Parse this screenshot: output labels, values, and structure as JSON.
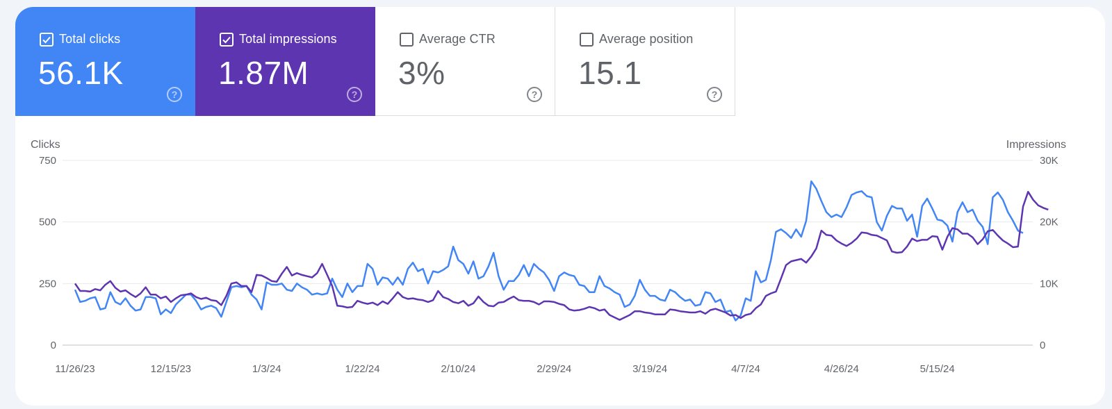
{
  "metrics": [
    {
      "label": "Total clicks",
      "value": "56.1K",
      "checked": true
    },
    {
      "label": "Total impressions",
      "value": "1.87M",
      "checked": true
    },
    {
      "label": "Average CTR",
      "value": "3%",
      "checked": false
    },
    {
      "label": "Average position",
      "value": "15.1",
      "checked": false
    }
  ],
  "help_glyph": "?",
  "colors": {
    "clicks": "#4285f4",
    "impressions": "#5e35b1",
    "grid": "#e8eaed",
    "axis": "#bdc1c6"
  },
  "chart_data": {
    "type": "line",
    "ylabel_left": "Clicks",
    "ylabel_right": "Impressions",
    "y_left_ticks": [
      "0",
      "250",
      "500",
      "750"
    ],
    "y_right_ticks": [
      "0",
      "10K",
      "20K",
      "30K"
    ],
    "ylim_left": [
      0,
      750
    ],
    "ylim_right": [
      0,
      30000
    ],
    "x_ticks": [
      "11/26/23",
      "12/15/23",
      "1/3/24",
      "1/22/24",
      "2/10/24",
      "2/29/24",
      "3/19/24",
      "4/7/24",
      "4/26/24",
      "5/15/24"
    ],
    "x_range": [
      "2023-11-26",
      "2024-05-24"
    ],
    "grid": true,
    "legend": "none",
    "series": [
      {
        "name": "Total clicks",
        "axis": "left",
        "values": [
          225,
          175,
          180,
          190,
          195,
          145,
          150,
          215,
          175,
          165,
          190,
          160,
          140,
          145,
          195,
          195,
          190,
          125,
          145,
          130,
          165,
          185,
          205,
          205,
          180,
          145,
          155,
          160,
          150,
          115,
          175,
          235,
          240,
          235,
          240,
          205,
          185,
          145,
          255,
          245,
          245,
          250,
          225,
          220,
          250,
          235,
          225,
          205,
          210,
          205,
          210,
          270,
          225,
          195,
          250,
          215,
          240,
          240,
          330,
          310,
          245,
          275,
          270,
          245,
          275,
          245,
          310,
          335,
          300,
          310,
          250,
          300,
          295,
          305,
          320,
          400,
          345,
          330,
          290,
          340,
          270,
          280,
          320,
          375,
          280,
          225,
          260,
          260,
          285,
          325,
          280,
          330,
          310,
          295,
          265,
          220,
          280,
          295,
          285,
          280,
          245,
          240,
          215,
          215,
          280,
          240,
          230,
          215,
          205,
          155,
          165,
          200,
          265,
          225,
          200,
          200,
          185,
          180,
          225,
          215,
          195,
          180,
          185,
          160,
          165,
          215,
          210,
          175,
          185,
          135,
          140,
          100,
          120,
          190,
          180,
          300,
          255,
          265,
          345,
          460,
          470,
          455,
          435,
          470,
          440,
          505,
          665,
          635,
          585,
          540,
          520,
          530,
          520,
          560,
          610,
          620,
          625,
          605,
          600,
          500,
          465,
          525,
          565,
          555,
          555,
          505,
          530,
          440,
          565,
          595,
          555,
          510,
          505,
          485,
          420,
          540,
          580,
          540,
          550,
          505,
          480,
          410,
          600,
          620,
          590,
          540,
          505,
          465,
          455
        ]
      },
      {
        "name": "Total impressions",
        "axis": "right",
        "values": [
          10000,
          8800,
          8800,
          8700,
          9100,
          8900,
          9800,
          10400,
          9300,
          8700,
          8900,
          8300,
          7800,
          8400,
          9400,
          8200,
          8200,
          7600,
          7900,
          7000,
          7600,
          8100,
          8200,
          8400,
          7800,
          7500,
          7700,
          7300,
          7200,
          6500,
          8000,
          10000,
          10200,
          9600,
          9600,
          8600,
          11400,
          11300,
          10900,
          10400,
          10300,
          11600,
          12700,
          11300,
          11700,
          11400,
          11200,
          11000,
          11700,
          13200,
          11400,
          9600,
          6400,
          6300,
          6100,
          6200,
          7200,
          6900,
          6700,
          6900,
          6500,
          7100,
          6700,
          7600,
          8600,
          7800,
          7500,
          7600,
          7400,
          7300,
          7000,
          7300,
          8800,
          7800,
          7500,
          7000,
          6800,
          7200,
          6400,
          6800,
          7900,
          7000,
          6400,
          6300,
          6900,
          7000,
          7500,
          7900,
          7300,
          7200,
          7200,
          7000,
          6600,
          7100,
          7100,
          7000,
          6700,
          6500,
          5800,
          5600,
          5700,
          5900,
          6200,
          6000,
          5600,
          5800,
          4900,
          4500,
          4100,
          4500,
          4900,
          5500,
          5500,
          5300,
          5200,
          5000,
          5000,
          5000,
          5800,
          5700,
          5500,
          5400,
          5300,
          5300,
          5500,
          5100,
          5700,
          5900,
          5600,
          5300,
          4800,
          4900,
          4400,
          4900,
          5100,
          6000,
          6600,
          8000,
          8400,
          8700,
          10800,
          13000,
          13600,
          13800,
          14000,
          13400,
          14400,
          15700,
          18600,
          17900,
          17800,
          17000,
          16500,
          16100,
          16600,
          17300,
          18300,
          18200,
          17900,
          17800,
          17400,
          17000,
          15200,
          15000,
          15100,
          16000,
          17300,
          16900,
          17100,
          17100,
          17700,
          17600,
          15500,
          17600,
          19000,
          18800,
          18100,
          18100,
          17500,
          16400,
          17200,
          18500,
          18700,
          17800,
          17000,
          16500,
          15900,
          16000,
          22500,
          24900,
          23600,
          22700,
          22300,
          22000
        ]
      }
    ]
  }
}
